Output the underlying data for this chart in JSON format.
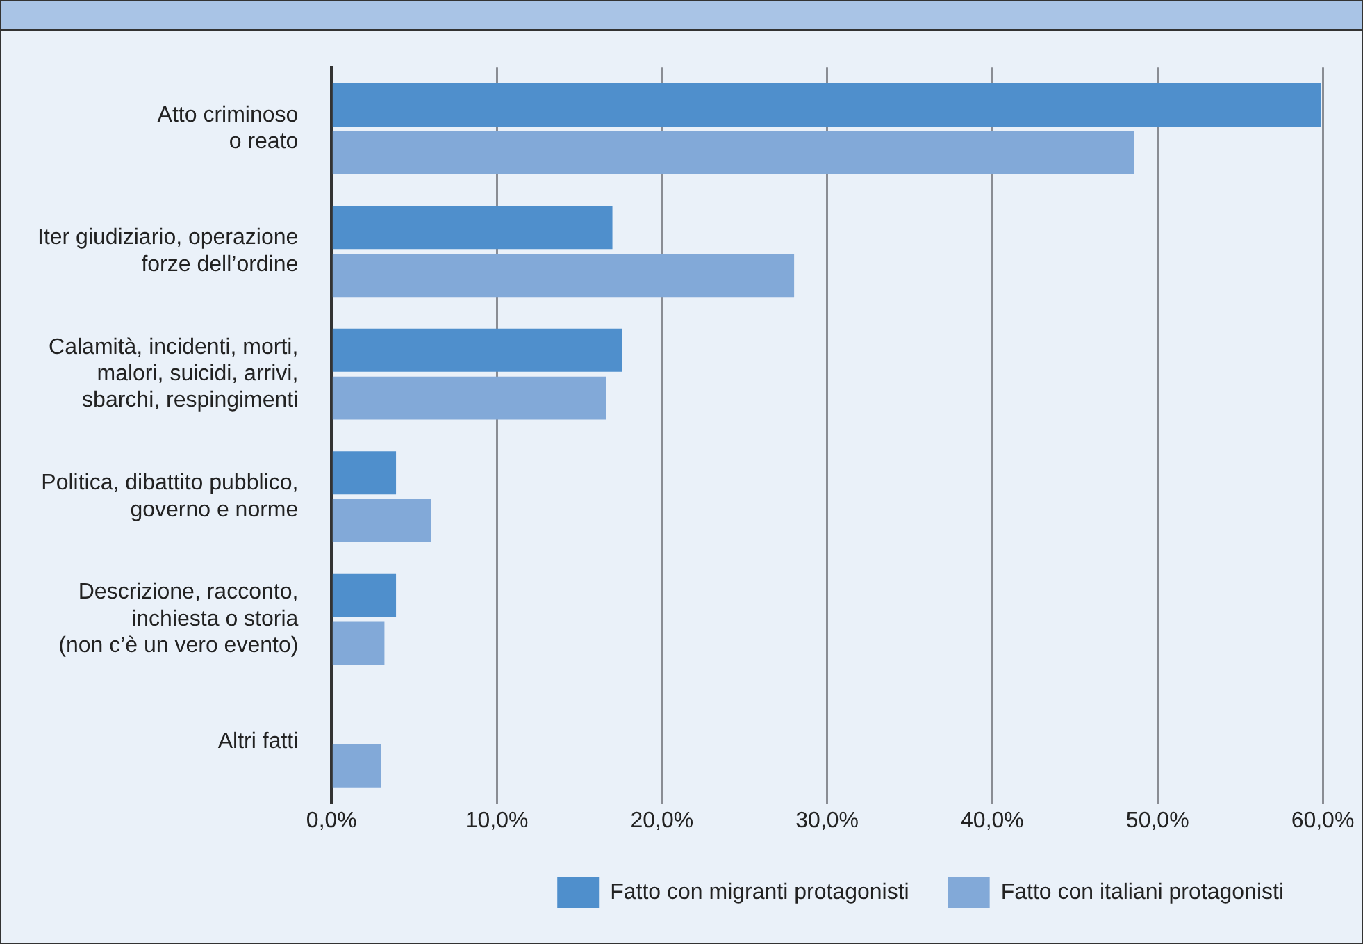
{
  "chart_data": {
    "type": "bar",
    "orientation": "horizontal",
    "categories": [
      "Atto criminoso\no reato",
      "Iter giudiziario, operazione\nforze dell’ordine",
      "Calamità, incidenti, morti,\nmalori, suicidi, arrivi,\nsbarchi, respingimenti",
      "Politica, dibattito pubblico,\ngoverno e norme",
      "Descrizione, racconto,\ninchiesta o storia\n(non c’è un vero evento)",
      "Altri fatti"
    ],
    "series": [
      {
        "name": "Fatto con migranti protagonisti",
        "color": "#4f8fcc",
        "values": [
          59.9,
          17.0,
          17.6,
          3.9,
          3.9,
          null
        ]
      },
      {
        "name": "Fatto con italiani protagonisti",
        "color": "#82a9d8",
        "values": [
          48.6,
          28.0,
          16.6,
          6.0,
          3.2,
          3.0
        ]
      }
    ],
    "xlim": [
      0,
      60
    ],
    "xticks": [
      {
        "value": 0,
        "label": "0,0%"
      },
      {
        "value": 10,
        "label": "10,0%"
      },
      {
        "value": 20,
        "label": "20,0%"
      },
      {
        "value": 30,
        "label": "30,0%"
      },
      {
        "value": 40,
        "label": "40,0%"
      },
      {
        "value": 50,
        "label": "50,0%"
      },
      {
        "value": 60,
        "label": "60,0%"
      }
    ],
    "grid": "x",
    "legend": "bottom"
  }
}
